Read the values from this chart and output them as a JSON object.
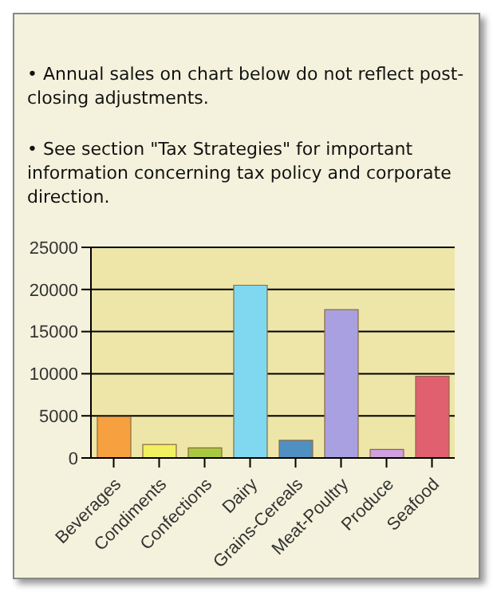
{
  "chart_data": {
    "type": "bar",
    "annotations": [
      "•  Annual sales on chart below do not reflect post-closing adjustments.",
      "•  See section \"Tax Strategies\" for important information concerning tax policy and corporate direction."
    ],
    "categories": [
      "Beverages",
      "Condiments",
      "Confections",
      "Dairy",
      "Grains-Cereals",
      "Meat-Poultry",
      "Produce",
      "Seafood"
    ],
    "values": [
      4900,
      1600,
      1200,
      20500,
      2100,
      17600,
      1000,
      9700
    ],
    "colors": [
      "#f7a040",
      "#f0f060",
      "#a8c840",
      "#80d8f0",
      "#5090c0",
      "#a8a0e0",
      "#d0a0e0",
      "#e06070"
    ],
    "ylim": [
      0,
      25000
    ],
    "yticks": [
      0,
      5000,
      10000,
      15000,
      20000,
      25000
    ],
    "grid": "y"
  }
}
